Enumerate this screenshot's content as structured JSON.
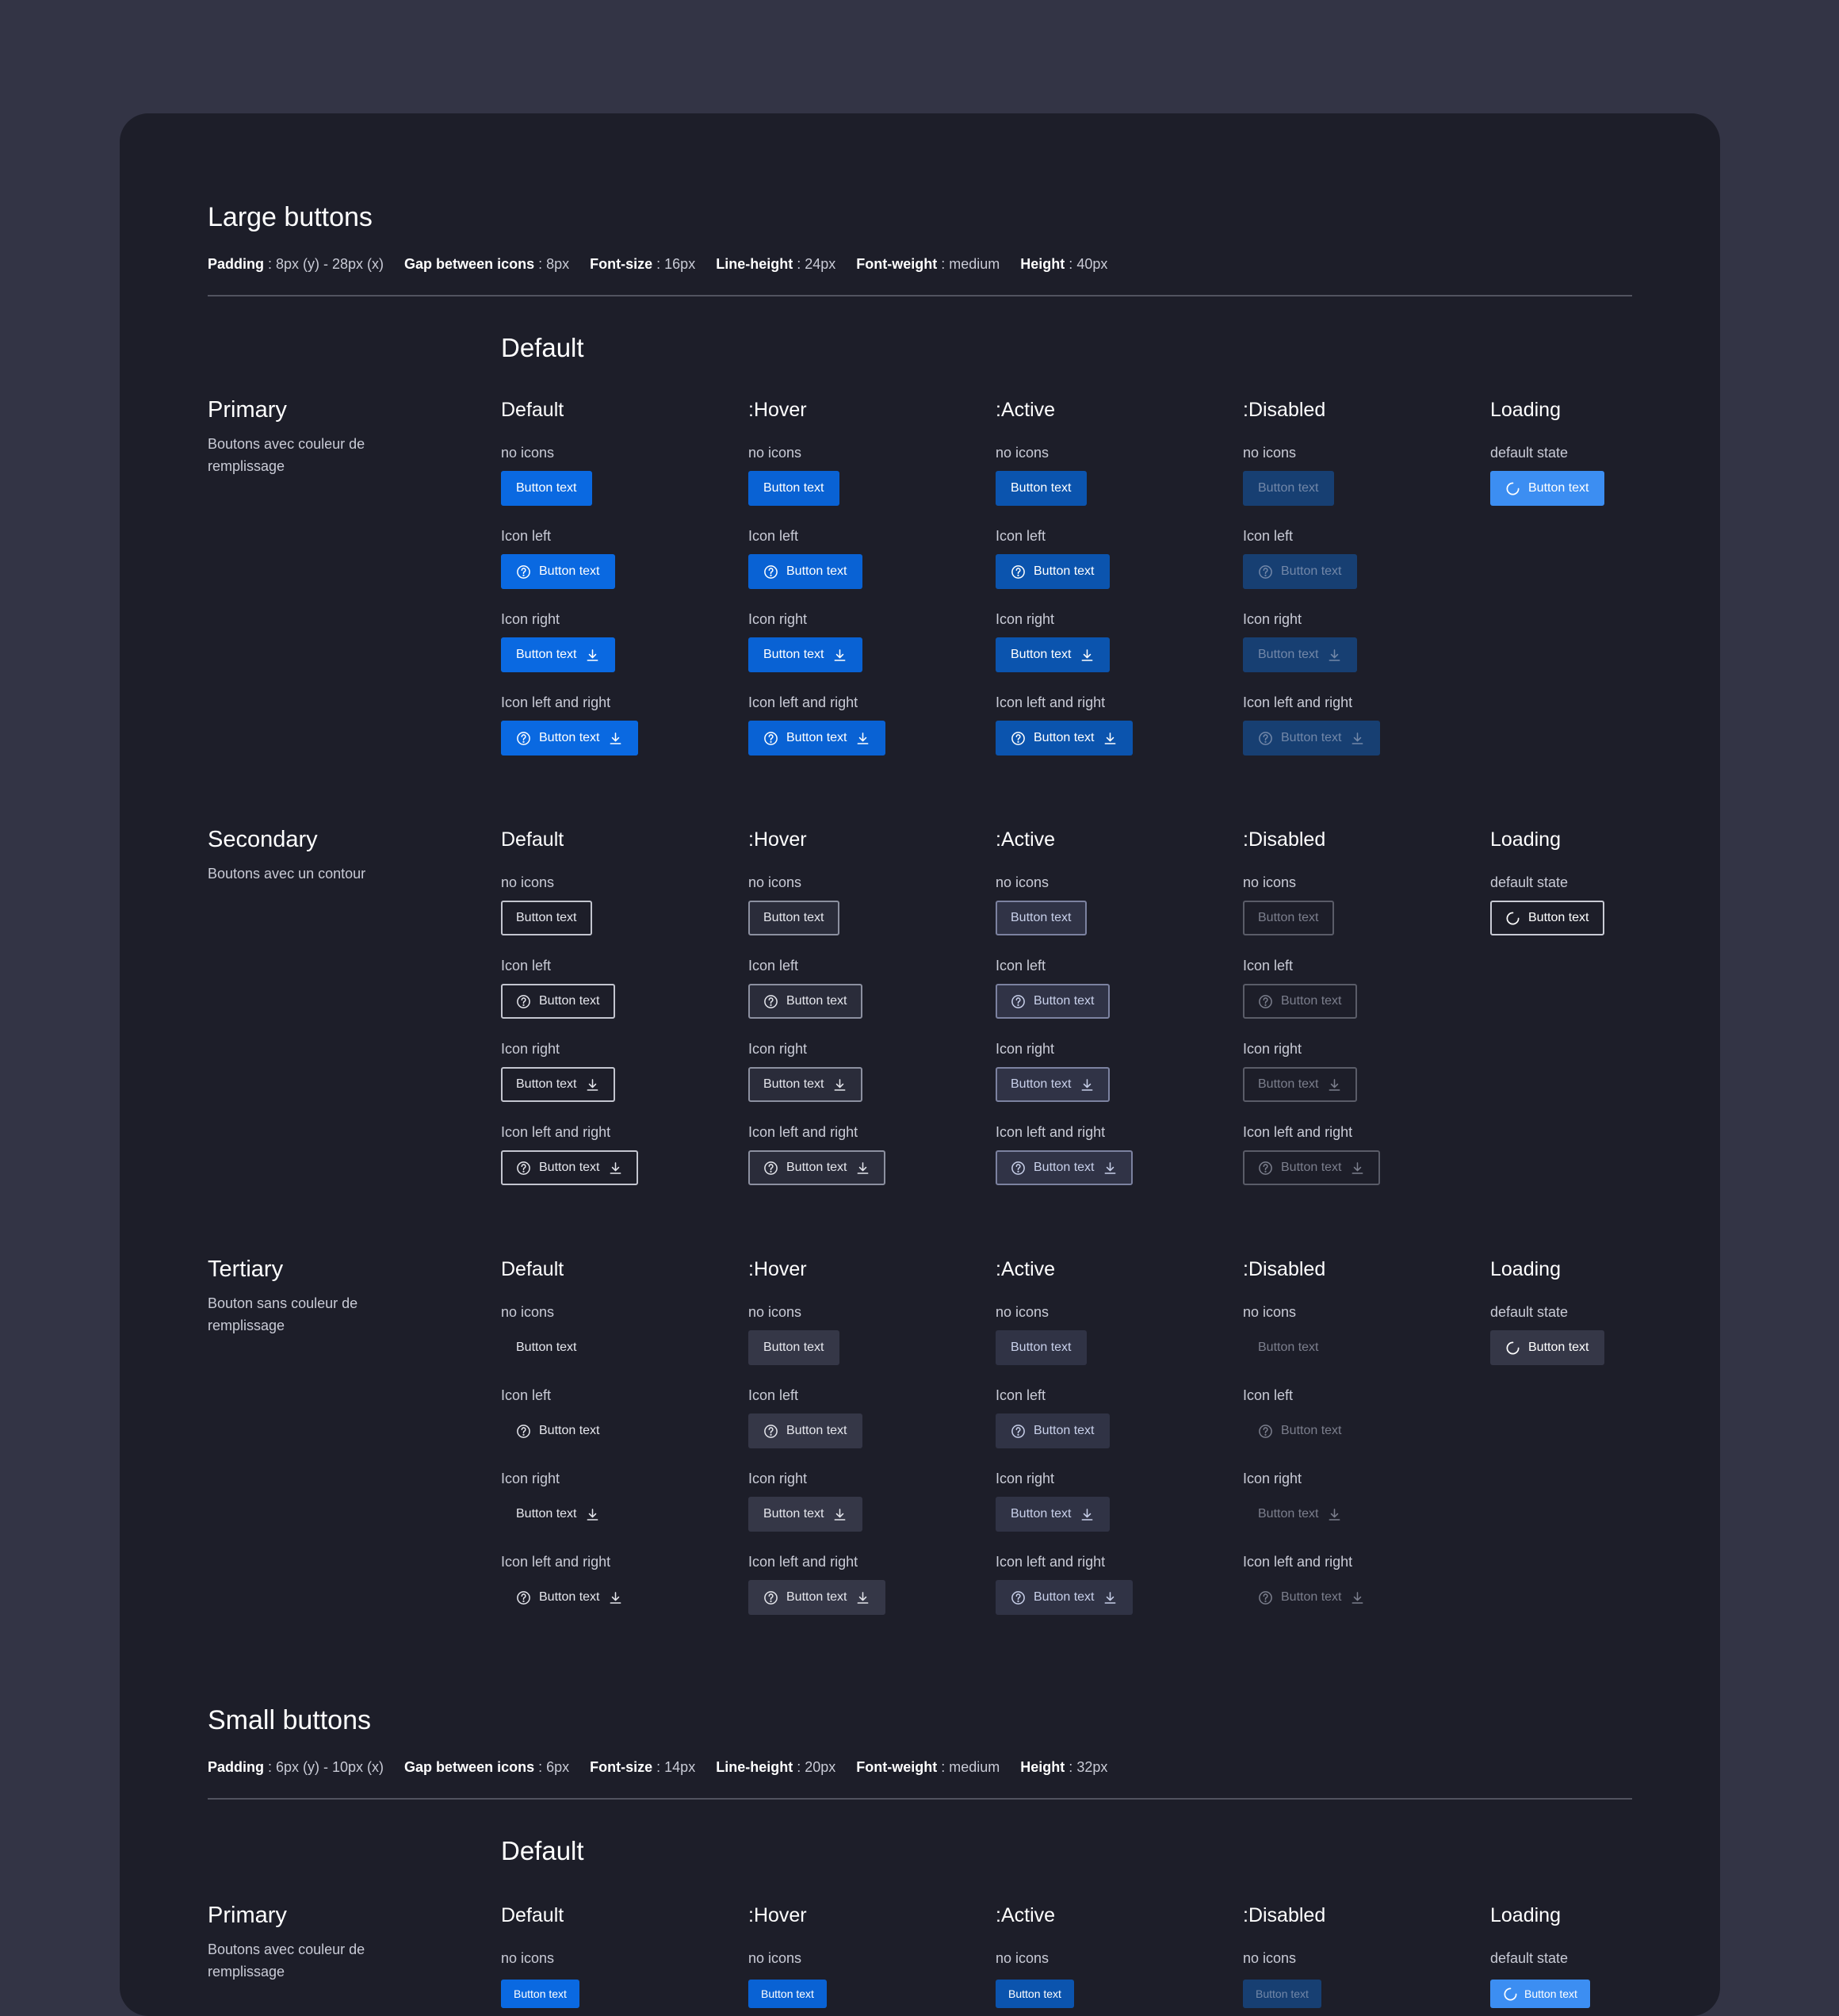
{
  "large": {
    "title": "Large buttons",
    "specs": [
      {
        "key": "Padding",
        "value": "8px (y) - 28px (x)"
      },
      {
        "key": "Gap between icons",
        "value": "8px"
      },
      {
        "key": "Font-size",
        "value": "16px"
      },
      {
        "key": "Line-height",
        "value": "24px"
      },
      {
        "key": "Font-weight",
        "value": "medium"
      },
      {
        "key": "Height",
        "value": "40px"
      }
    ],
    "state_title": "Default"
  },
  "small": {
    "title": "Small buttons",
    "specs": [
      {
        "key": "Padding",
        "value": "6px (y) - 10px (x)"
      },
      {
        "key": "Gap between icons",
        "value": "6px"
      },
      {
        "key": "Font-size",
        "value": "14px"
      },
      {
        "key": "Line-height",
        "value": "20px"
      },
      {
        "key": "Font-weight",
        "value": "medium"
      },
      {
        "key": "Height",
        "value": "32px"
      }
    ],
    "state_title": "Default"
  },
  "spec_separator": " : ",
  "columns": [
    "Default",
    ":Hover",
    ":Active",
    ":Disabled",
    "Loading"
  ],
  "variants": [
    "no icons",
    "Icon left",
    "Icon right",
    "Icon left and right"
  ],
  "loading_label": "default state",
  "button_text": "Button text",
  "categories": [
    {
      "id": "primary",
      "title": "Primary",
      "desc": "Boutons avec couleur de remplissage"
    },
    {
      "id": "secondary",
      "title": "Secondary",
      "desc": "Boutons avec un contour"
    },
    {
      "id": "tertiary",
      "title": "Tertiary",
      "desc": "Bouton sans couleur de remplissage"
    }
  ],
  "icons": {
    "left": "help-circle-icon",
    "right": "download-icon",
    "loading": "spinner-icon"
  },
  "colors": {
    "page_bg": "#333445",
    "card_bg": "#1d1e29",
    "primary_default": "#0a69e1",
    "primary_active": "#0b54ae",
    "primary_disabled": "#173f72",
    "primary_loading": "#3c8ef2"
  }
}
